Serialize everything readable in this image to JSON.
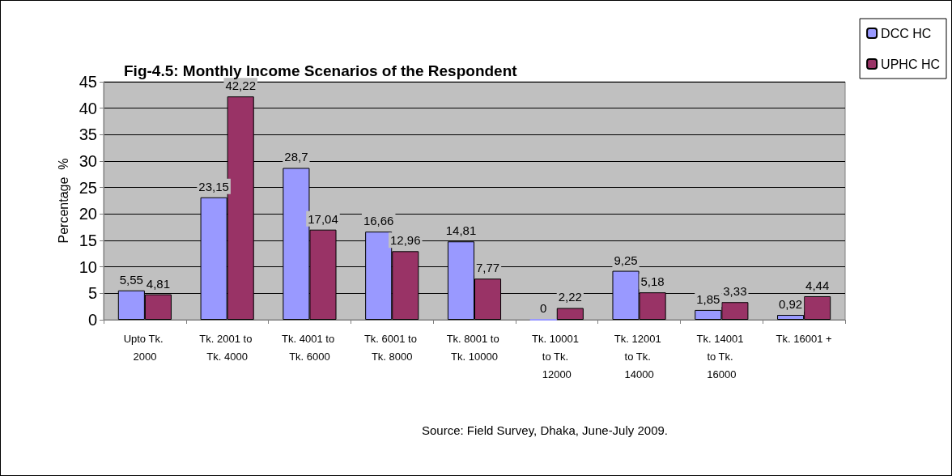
{
  "chart_data": {
    "type": "bar",
    "title": "Fig-4.5: Monthly Income Scenarios of the Respondent",
    "ylabel": "Percentage  %",
    "categories": [
      "Upto Tk. 2000",
      "Tk. 2001 to Tk. 4000",
      "Tk. 4001 to Tk. 6000",
      "Tk. 6001 to Tk. 8000",
      "Tk. 8001 to Tk. 10000",
      "Tk. 10001 to Tk. 12000",
      "Tk. 12001 to Tk. 14000",
      "Tk. 14001 to Tk. 16000",
      "Tk. 16001 +"
    ],
    "series": [
      {
        "name": "DCC HC",
        "color": "#9999ff",
        "values": [
          5.55,
          23.15,
          28.7,
          16.66,
          14.81,
          0,
          9.25,
          1.85,
          0.92
        ],
        "value_labels": [
          "5,55",
          "23,15",
          "28,7",
          "16,66",
          "14,81",
          "0",
          "9,25",
          "1,85",
          "0,92"
        ]
      },
      {
        "name": "UPHC HC",
        "color": "#993366",
        "values": [
          4.81,
          42.22,
          17.04,
          12.96,
          7.77,
          2.22,
          5.18,
          3.33,
          4.44
        ],
        "value_labels": [
          "4,81",
          "42,22",
          "17,04",
          "12,96",
          "7,77",
          "2,22",
          "5,18",
          "3,33",
          "4,44"
        ]
      }
    ],
    "ylim": [
      0,
      45
    ],
    "yticks": [
      0,
      5,
      10,
      15,
      20,
      25,
      30,
      35,
      40,
      45
    ],
    "grid": "y",
    "legend": "top right",
    "annotations": [
      "Source: Field Survey, Dhaka, June-July 2009."
    ]
  }
}
